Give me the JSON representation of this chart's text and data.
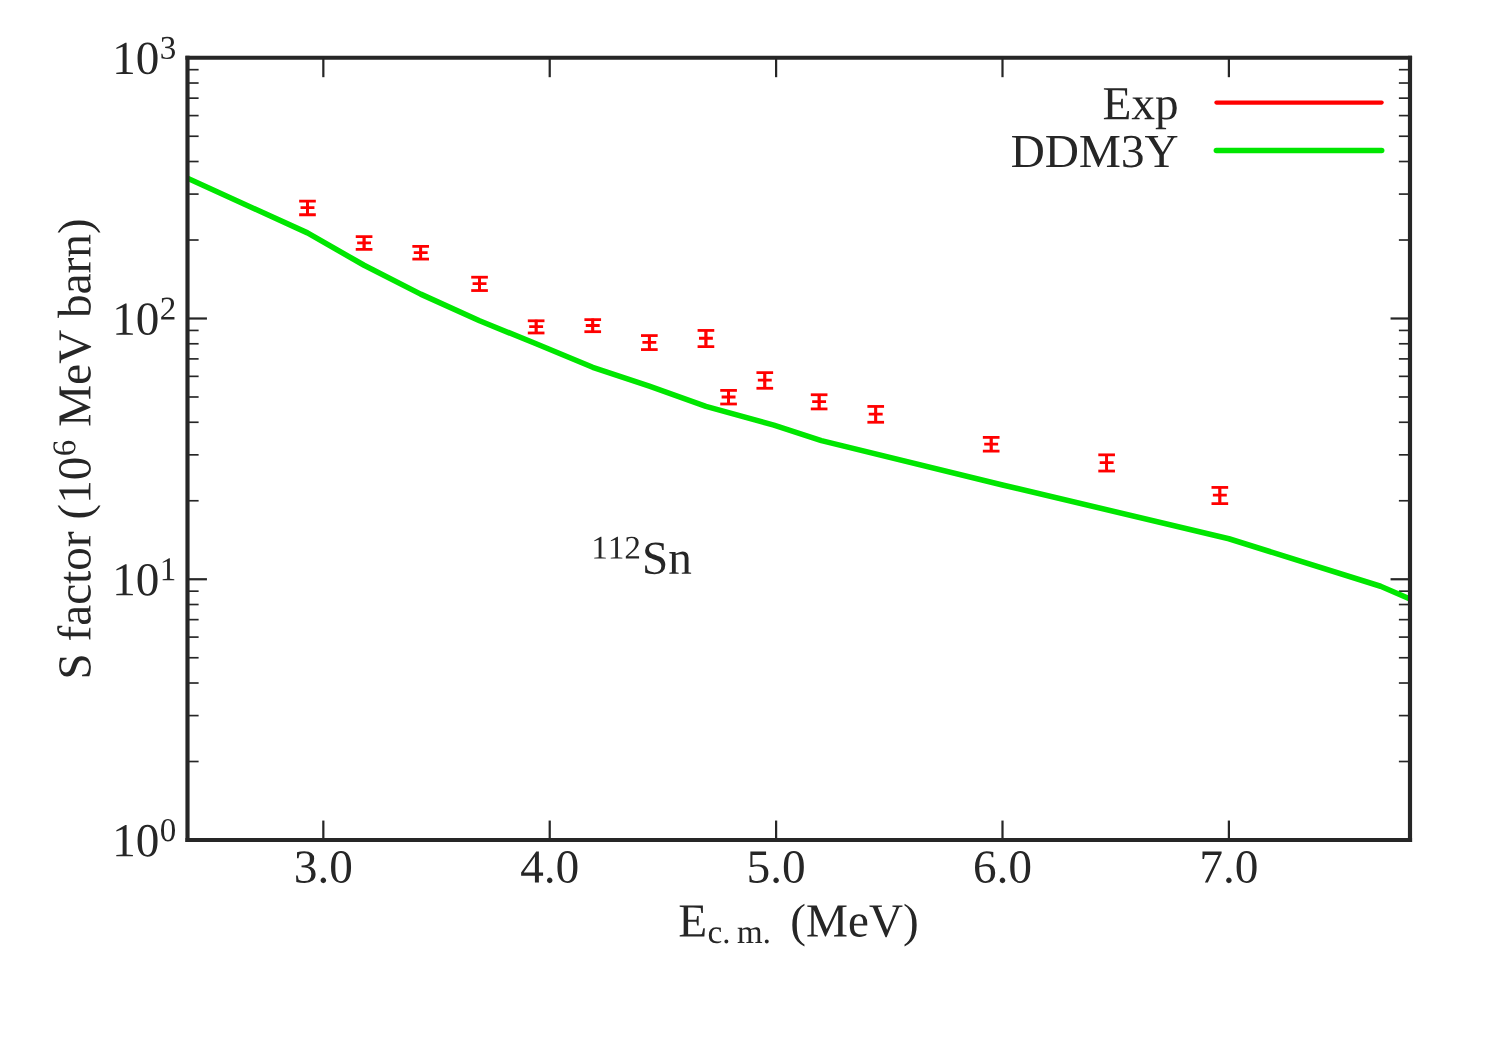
{
  "chart_data": {
    "type": "scatter",
    "xlabel": "E$_{c.m.}$ (MeV)",
    "ylabel": "S factor (10$^{6}$ MeV barn)",
    "annotations": [
      "$^{112}$Sn"
    ],
    "xlim": [
      2.4,
      7.8
    ],
    "xticks": [
      {
        "value": 3,
        "label": "3.0"
      },
      {
        "value": 4,
        "label": "4.0"
      },
      {
        "value": 5,
        "label": "5.0"
      },
      {
        "value": 6,
        "label": "6.0"
      },
      {
        "value": 7,
        "label": "7.0"
      }
    ],
    "ylim": [
      1,
      1000
    ],
    "yticks": [
      {
        "value": 1,
        "label": "10$^{0}$"
      },
      {
        "value": 10,
        "label": "10$^{1}$"
      },
      {
        "value": 100,
        "label": "10$^{2}$"
      },
      {
        "value": 1000,
        "label": "10$^{3}$"
      }
    ],
    "log": "y",
    "grid": false,
    "legend": "top right",
    "series": [
      {
        "name": "Exp",
        "color": "#ff0000",
        "marker": "cross",
        "x": [
          2.93,
          3.18,
          3.43,
          3.69,
          3.94,
          4.19,
          4.44,
          4.69,
          4.79,
          4.95,
          5.19,
          5.44,
          5.95,
          6.46,
          6.96
        ],
        "values": [
          266,
          195,
          179,
          136,
          93,
          94,
          81,
          84,
          50,
          58,
          48,
          43,
          33,
          28,
          21
        ],
        "errors": [
          16,
          11,
          10,
          8,
          5,
          5,
          5,
          6,
          3,
          4,
          3,
          3,
          2,
          2,
          1.5
        ]
      },
      {
        "name": "DDM3Y",
        "type": "line",
        "color": "#00e600",
        "line_style": "solid",
        "x": [
          2.4,
          2.93,
          3.18,
          3.43,
          3.69,
          3.94,
          4.19,
          4.44,
          4.69,
          4.99,
          5.2,
          6.0,
          7.0,
          7.67,
          7.8
        ],
        "values": [
          345,
          213,
          160,
          124,
          98,
          80,
          65,
          55,
          46,
          39,
          34,
          23,
          14.3,
          9.4,
          8.4
        ]
      }
    ]
  }
}
